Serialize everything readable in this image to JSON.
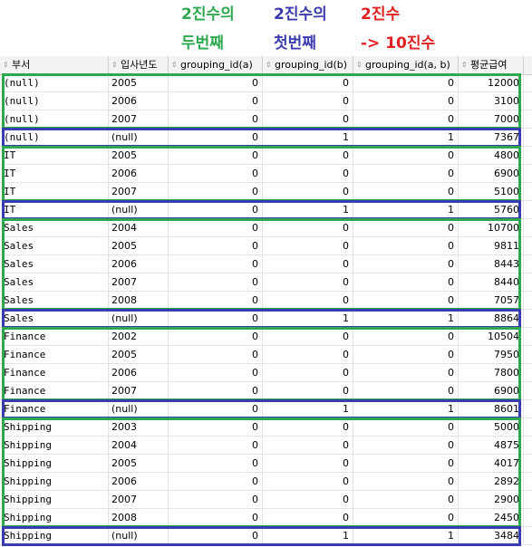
{
  "annotations": {
    "col1_line1": "2진수의",
    "col1_line2": "두번째",
    "col2_line1": "2진수의",
    "col2_line2": "첫번째",
    "col3_line1": "2진수",
    "col3_line2": "-> 10진수",
    "colors": {
      "green": "#2ea84f",
      "blue": "#3b3bb0",
      "red": "#e02020"
    }
  },
  "columns": [
    "부서",
    "입사년도",
    "grouping_id(a)",
    "grouping_id(b)",
    "grouping_id(a, b)",
    "평균급여"
  ],
  "rows": [
    {
      "dept": "(null)",
      "year": "2005",
      "ga": "0",
      "gb": "0",
      "gab": "0",
      "avg": "12000"
    },
    {
      "dept": "(null)",
      "year": "2006",
      "ga": "0",
      "gb": "0",
      "gab": "0",
      "avg": "3100"
    },
    {
      "dept": "(null)",
      "year": "2007",
      "ga": "0",
      "gb": "0",
      "gab": "0",
      "avg": "7000"
    },
    {
      "dept": "(null)",
      "year": "(null)",
      "ga": "0",
      "gb": "1",
      "gab": "1",
      "avg": "7367"
    },
    {
      "dept": "IT",
      "year": "2005",
      "ga": "0",
      "gb": "0",
      "gab": "0",
      "avg": "4800"
    },
    {
      "dept": "IT",
      "year": "2006",
      "ga": "0",
      "gb": "0",
      "gab": "0",
      "avg": "6900"
    },
    {
      "dept": "IT",
      "year": "2007",
      "ga": "0",
      "gb": "0",
      "gab": "0",
      "avg": "5100"
    },
    {
      "dept": "IT",
      "year": "(null)",
      "ga": "0",
      "gb": "1",
      "gab": "1",
      "avg": "5760"
    },
    {
      "dept": "Sales",
      "year": "2004",
      "ga": "0",
      "gb": "0",
      "gab": "0",
      "avg": "10700"
    },
    {
      "dept": "Sales",
      "year": "2005",
      "ga": "0",
      "gb": "0",
      "gab": "0",
      "avg": "9811"
    },
    {
      "dept": "Sales",
      "year": "2006",
      "ga": "0",
      "gb": "0",
      "gab": "0",
      "avg": "8443"
    },
    {
      "dept": "Sales",
      "year": "2007",
      "ga": "0",
      "gb": "0",
      "gab": "0",
      "avg": "8440"
    },
    {
      "dept": "Sales",
      "year": "2008",
      "ga": "0",
      "gb": "0",
      "gab": "0",
      "avg": "7057"
    },
    {
      "dept": "Sales",
      "year": "(null)",
      "ga": "0",
      "gb": "1",
      "gab": "1",
      "avg": "8864"
    },
    {
      "dept": "Finance",
      "year": "2002",
      "ga": "0",
      "gb": "0",
      "gab": "0",
      "avg": "10504"
    },
    {
      "dept": "Finance",
      "year": "2005",
      "ga": "0",
      "gb": "0",
      "gab": "0",
      "avg": "7950"
    },
    {
      "dept": "Finance",
      "year": "2006",
      "ga": "0",
      "gb": "0",
      "gab": "0",
      "avg": "7800"
    },
    {
      "dept": "Finance",
      "year": "2007",
      "ga": "0",
      "gb": "0",
      "gab": "0",
      "avg": "6900"
    },
    {
      "dept": "Finance",
      "year": "(null)",
      "ga": "0",
      "gb": "1",
      "gab": "1",
      "avg": "8601"
    },
    {
      "dept": "Shipping",
      "year": "2003",
      "ga": "0",
      "gb": "0",
      "gab": "0",
      "avg": "5000"
    },
    {
      "dept": "Shipping",
      "year": "2004",
      "ga": "0",
      "gb": "0",
      "gab": "0",
      "avg": "4875"
    },
    {
      "dept": "Shipping",
      "year": "2005",
      "ga": "0",
      "gb": "0",
      "gab": "0",
      "avg": "4017"
    },
    {
      "dept": "Shipping",
      "year": "2006",
      "ga": "0",
      "gb": "0",
      "gab": "0",
      "avg": "2892"
    },
    {
      "dept": "Shipping",
      "year": "2007",
      "ga": "0",
      "gb": "0",
      "gab": "0",
      "avg": "2900"
    },
    {
      "dept": "Shipping",
      "year": "2008",
      "ga": "0",
      "gb": "0",
      "gab": "0",
      "avg": "2450"
    },
    {
      "dept": "Shipping",
      "year": "(null)",
      "ga": "0",
      "gb": "1",
      "gab": "1",
      "avg": "3484"
    }
  ],
  "highlight_groups": [
    {
      "color": "green",
      "first": 0,
      "last": 2
    },
    {
      "color": "blue",
      "first": 3,
      "last": 3
    },
    {
      "color": "green",
      "first": 4,
      "last": 6
    },
    {
      "color": "blue",
      "first": 7,
      "last": 7
    },
    {
      "color": "green",
      "first": 8,
      "last": 12
    },
    {
      "color": "blue",
      "first": 13,
      "last": 13
    },
    {
      "color": "green",
      "first": 14,
      "last": 17
    },
    {
      "color": "blue",
      "first": 18,
      "last": 18
    },
    {
      "color": "green",
      "first": 19,
      "last": 24
    },
    {
      "color": "blue",
      "first": 25,
      "last": 25
    }
  ]
}
